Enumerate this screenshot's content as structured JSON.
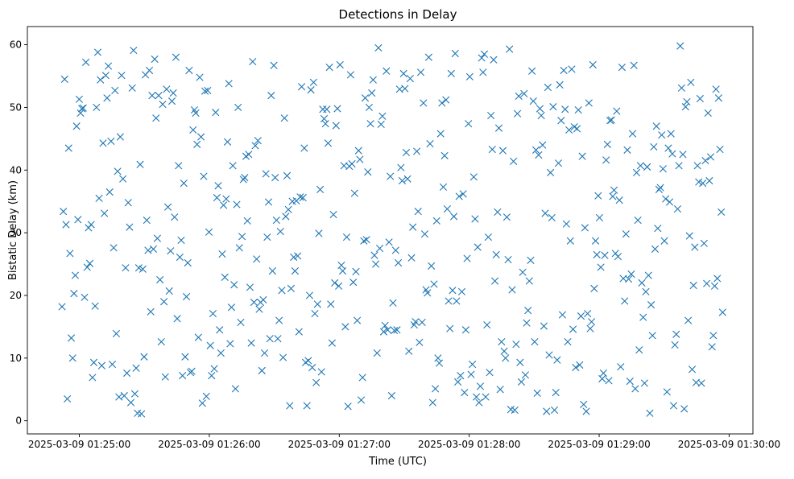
{
  "chart_data": {
    "type": "scatter",
    "title": "Detections in Delay",
    "xlabel": "Time (UTC)",
    "ylabel": "Bistatic Delay (km)",
    "marker": "x",
    "color": "#1f77b4",
    "xlim": [
      "2025-03-09 01:24:36",
      "2025-03-09 01:30:11"
    ],
    "ylim": [
      -2.1,
      62.9
    ],
    "xticks": [
      "2025-03-09 01:25:00",
      "2025-03-09 01:26:00",
      "2025-03-09 01:27:00",
      "2025-03-09 01:28:00",
      "2025-03-09 01:29:00",
      "2025-03-09 01:30:00"
    ],
    "yticks": [
      0,
      10,
      20,
      30,
      40,
      50,
      60
    ],
    "x_first": "2025-03-09 01:24:52",
    "x_last": "2025-03-09 01:29:57",
    "y_min": 1.0,
    "y_max": 59.8,
    "grid": false,
    "legend": "none",
    "n_points": 500
  }
}
